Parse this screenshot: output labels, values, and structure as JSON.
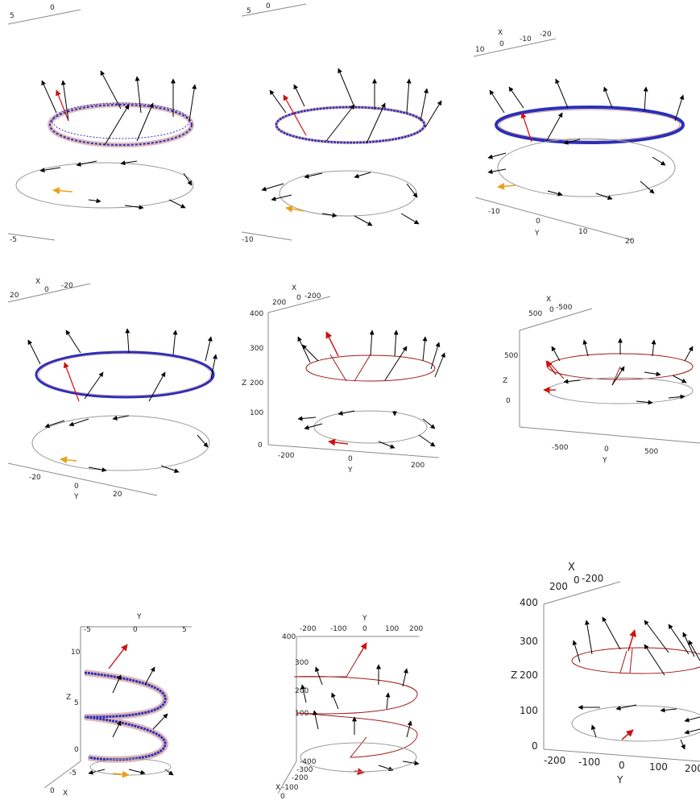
{
  "colors": {
    "coil": "#2b2fb8",
    "coil_inner": "#c98a8a",
    "ground_ring": "#9a9a9a",
    "arrow": "#000000",
    "red_arrow": "#d01010",
    "orange_arrow": "#e7a21b",
    "red_ring": "#a01818",
    "axis": "#8a8a8a"
  },
  "panels": [
    {
      "id": "p1",
      "labels": {
        "top_tick_a": "5",
        "top_tick_b": "0",
        "bottom_tick": "-5"
      }
    },
    {
      "id": "p2",
      "labels": {
        "top_tick_a": "5",
        "top_tick_b": "0",
        "bottom_tick": "-10"
      }
    },
    {
      "id": "p3",
      "labels": {
        "x_axis": "X",
        "x_t1": "10",
        "x_t2": "0",
        "x_t3": "-10",
        "x_t4": "-20",
        "y_t1": "-10",
        "y_t2": "0",
        "y_t3": "10",
        "y_t4": "20",
        "y_axis": "Y"
      }
    },
    {
      "id": "p4",
      "labels": {
        "x_axis": "X",
        "x_t1": "20",
        "x_t2": "0",
        "x_t3": "-20",
        "y_t1": "-20",
        "y_t2": "0",
        "y_t3": "20",
        "y_axis": "Y"
      }
    },
    {
      "id": "p5",
      "labels": {
        "x_axis": "X",
        "x_t1": "200",
        "x_t2": "0",
        "x_t3": "-200",
        "z_t400": "400",
        "z_t300": "300",
        "z_label": "Z",
        "z_t200": "200",
        "z_t100": "100",
        "z_t0": "0",
        "y_t1": "-200",
        "y_t2": "0",
        "y_t3": "200",
        "y_axis": "Y"
      }
    },
    {
      "id": "p6",
      "labels": {
        "x_axis": "X",
        "x_t1": "500",
        "x_t2": "0",
        "x_t3": "-500",
        "z_t500": "500",
        "z_label": "Z",
        "z_t0": "0",
        "y_t1": "-500",
        "y_t2": "0",
        "y_t3": "500",
        "y_axis": "Y"
      }
    },
    {
      "id": "p7",
      "labels": {
        "y_axis": "Y",
        "y_t1": "-5",
        "y_t2": "0",
        "y_t3": "5",
        "z_t10": "10",
        "z_label": "Z",
        "z_t5": "5",
        "z_t0": "0",
        "x_t1": "-5",
        "x_t2": "0",
        "x_axis": "X"
      }
    },
    {
      "id": "p8",
      "labels": {
        "y_axis": "Y",
        "y_t1": "-200",
        "y_t2": "-100",
        "y_t3": "0",
        "y_t4": "100",
        "y_t5": "200",
        "z_t400": "400",
        "z_t300": "300",
        "z_t200": "200",
        "z_t100": "100",
        "x_t400": "-400",
        "x_t300": "-300",
        "x_t200": "-200",
        "x_axis": "X",
        "x_t100": "-100",
        "x_t0": "0"
      }
    },
    {
      "id": "p9",
      "labels": {
        "x_axis": "X",
        "x_t1": "200",
        "x_t2": "0",
        "x_t3": "-200",
        "z_t400": "400",
        "z_t300": "300",
        "z_label": "Z",
        "z_t200": "200",
        "z_t100": "100",
        "z_t0": "0",
        "y_t1": "-200",
        "y_t2": "-100",
        "y_t3": "0",
        "y_t4": "100",
        "y_t5": "200",
        "y_axis": "Y"
      }
    }
  ]
}
